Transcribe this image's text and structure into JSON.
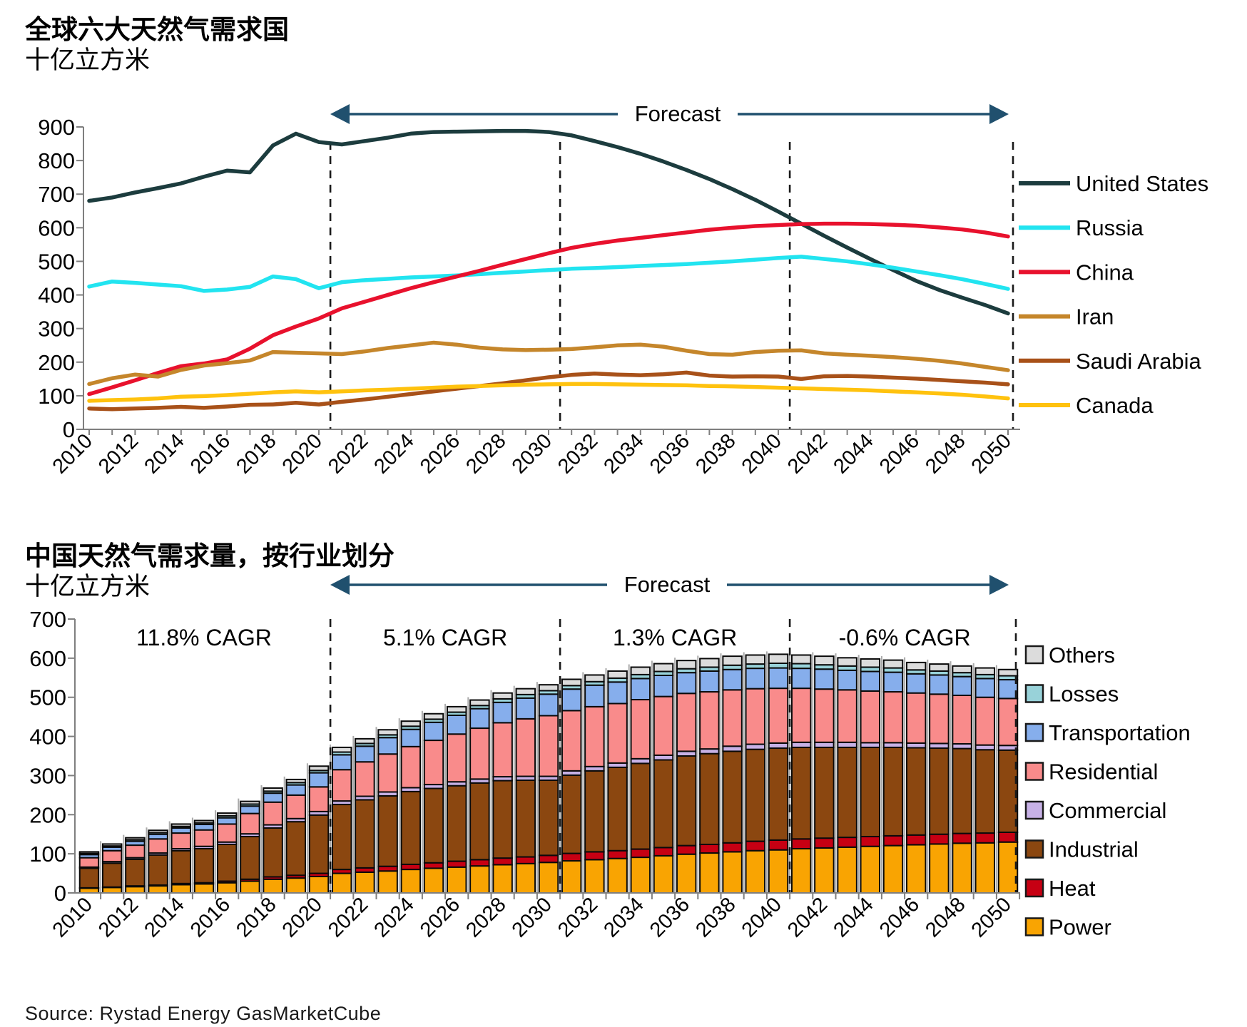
{
  "page_background": "#FFFFFF",
  "source_note": "Source: Rystad Energy GasMarketCube",
  "forecast_label": "Forecast",
  "colors": {
    "forecast_arrow": "#20506E",
    "axis": "#7F7F7F",
    "dashed_line": "#1A1A1A",
    "bar_outline": "#0A0A0A",
    "bar_separator": "#ABABAB",
    "text": "#000000"
  },
  "chart_data": [
    {
      "type": "line",
      "title": "全球六大天然气需求国",
      "subtitle": "十亿立方米",
      "xlabel": "",
      "ylabel": "",
      "ylim": [
        0,
        900
      ],
      "y_ticks": [
        0,
        100,
        200,
        300,
        400,
        500,
        600,
        700,
        800,
        900
      ],
      "x": [
        2010,
        2011,
        2012,
        2013,
        2014,
        2015,
        2016,
        2017,
        2018,
        2019,
        2020,
        2021,
        2022,
        2023,
        2024,
        2025,
        2026,
        2027,
        2028,
        2029,
        2030,
        2031,
        2032,
        2033,
        2034,
        2035,
        2036,
        2037,
        2038,
        2039,
        2040,
        2041,
        2042,
        2043,
        2044,
        2045,
        2046,
        2047,
        2048,
        2049,
        2050
      ],
      "x_tick_step": 2,
      "grid": false,
      "legend_position": "right",
      "forecast_start_year": 2021,
      "dashed_boundaries_after_years": [
        2020,
        2030,
        2040,
        2050
      ],
      "series": [
        {
          "name": "United States",
          "color": "#1C3C3E",
          "values": [
            680,
            690,
            705,
            718,
            732,
            752,
            770,
            765,
            845,
            880,
            855,
            848,
            858,
            868,
            880,
            885,
            886,
            887,
            888,
            888,
            885,
            875,
            858,
            840,
            820,
            797,
            772,
            745,
            715,
            683,
            648,
            612,
            576,
            541,
            507,
            474,
            442,
            415,
            392,
            370,
            345
          ]
        },
        {
          "name": "Russia",
          "color": "#22E4F0",
          "values": [
            425,
            440,
            436,
            431,
            426,
            412,
            416,
            424,
            455,
            447,
            420,
            438,
            444,
            448,
            452,
            455,
            458,
            462,
            466,
            470,
            474,
            478,
            480,
            483,
            486,
            489,
            492,
            496,
            500,
            505,
            510,
            514,
            507,
            500,
            491,
            481,
            470,
            459,
            447,
            433,
            418
          ]
        },
        {
          "name": "China",
          "color": "#E8112D",
          "values": [
            105,
            125,
            146,
            168,
            188,
            196,
            208,
            240,
            280,
            306,
            330,
            360,
            380,
            400,
            420,
            438,
            455,
            472,
            490,
            507,
            524,
            540,
            552,
            562,
            570,
            578,
            586,
            594,
            600,
            605,
            608,
            611,
            612,
            612,
            611,
            609,
            606,
            601,
            595,
            586,
            574
          ]
        },
        {
          "name": "Iran",
          "color": "#C5862B",
          "values": [
            135,
            152,
            163,
            157,
            177,
            190,
            197,
            205,
            230,
            228,
            226,
            224,
            232,
            242,
            250,
            258,
            252,
            243,
            238,
            236,
            237,
            239,
            244,
            250,
            252,
            246,
            234,
            224,
            222,
            230,
            234,
            235,
            226,
            222,
            219,
            215,
            210,
            204,
            196,
            186,
            176
          ]
        },
        {
          "name": "Saudi Arabia",
          "color": "#A85119",
          "values": [
            62,
            60,
            62,
            64,
            67,
            64,
            68,
            73,
            74,
            79,
            74,
            82,
            89,
            97,
            105,
            113,
            121,
            129,
            137,
            146,
            155,
            162,
            166,
            163,
            161,
            164,
            169,
            160,
            157,
            158,
            157,
            150,
            158,
            159,
            157,
            154,
            151,
            147,
            143,
            139,
            134
          ]
        },
        {
          "name": "Canada",
          "color": "#FFC20E",
          "values": [
            85,
            87,
            89,
            92,
            97,
            99,
            102,
            106,
            110,
            113,
            110,
            113,
            116,
            118,
            121,
            124,
            127,
            129,
            131,
            133,
            134,
            135,
            135,
            134,
            133,
            132,
            131,
            129,
            128,
            126,
            124,
            122,
            120,
            118,
            116,
            113,
            110,
            107,
            103,
            98,
            92
          ]
        }
      ]
    },
    {
      "type": "bar",
      "stacked": true,
      "title": "中国天然气需求量，按行业划分",
      "subtitle": "十亿立方米",
      "ylim": [
        0,
        700
      ],
      "y_ticks": [
        0,
        100,
        200,
        300,
        400,
        500,
        600,
        700
      ],
      "categories": [
        2010,
        2011,
        2012,
        2013,
        2014,
        2015,
        2016,
        2017,
        2018,
        2019,
        2020,
        2021,
        2022,
        2023,
        2024,
        2025,
        2026,
        2027,
        2028,
        2029,
        2030,
        2031,
        2032,
        2033,
        2034,
        2035,
        2036,
        2037,
        2038,
        2039,
        2040,
        2041,
        2042,
        2043,
        2044,
        2045,
        2046,
        2047,
        2048,
        2049,
        2050
      ],
      "x_tick_step": 2,
      "dashed_boundaries_after_years": [
        2020,
        2030,
        2040,
        2050
      ],
      "cagr_labels": [
        {
          "text": "11.8% CAGR",
          "span": [
            2010,
            2020
          ]
        },
        {
          "text": "5.1% CAGR",
          "span": [
            2021,
            2030
          ]
        },
        {
          "text": "1.3% CAGR",
          "span": [
            2031,
            2040
          ]
        },
        {
          "text": "-0.6% CAGR",
          "span": [
            2041,
            2050
          ]
        }
      ],
      "legend_order_top_to_bottom": [
        "Others",
        "Losses",
        "Transportation",
        "Residential",
        "Commercial",
        "Industrial",
        "Heat",
        "Power"
      ],
      "series": [
        {
          "name": "Power",
          "color": "#F9A402",
          "values": [
            12,
            14,
            16,
            18,
            21,
            23,
            26,
            30,
            35,
            38,
            42,
            50,
            53,
            56,
            60,
            63,
            66,
            69,
            72,
            75,
            78,
            82,
            85,
            88,
            91,
            95,
            99,
            102,
            105,
            108,
            110,
            113,
            115,
            117,
            119,
            121,
            123,
            125,
            127,
            128,
            130
          ]
        },
        {
          "name": "Heat",
          "color": "#C70013",
          "values": [
            1,
            1,
            2,
            2,
            3,
            3,
            4,
            5,
            6,
            7,
            8,
            10,
            11,
            12,
            13,
            14,
            15,
            16,
            17,
            17,
            18,
            19,
            20,
            20,
            21,
            21,
            22,
            22,
            23,
            24,
            25,
            25,
            25,
            25,
            25,
            25,
            25,
            25,
            25,
            25,
            25
          ]
        },
        {
          "name": "Industrial",
          "color": "#8B4710",
          "values": [
            50,
            61,
            68,
            77,
            84,
            87,
            94,
            109,
            125,
            137,
            149,
            166,
            174,
            180,
            186,
            190,
            193,
            196,
            198,
            196,
            192,
            200,
            207,
            213,
            219,
            224,
            229,
            232,
            234,
            235,
            235,
            234,
            232,
            230,
            228,
            226,
            223,
            220,
            217,
            213,
            210
          ]
        },
        {
          "name": "Commercial",
          "color": "#C7B1E6",
          "values": [
            3,
            4,
            4,
            5,
            5,
            6,
            6,
            7,
            8,
            8,
            9,
            9,
            9,
            10,
            10,
            10,
            10,
            10,
            10,
            10,
            10,
            11,
            11,
            11,
            12,
            12,
            12,
            12,
            13,
            13,
            13,
            13,
            13,
            13,
            12,
            12,
            12,
            12,
            12,
            12,
            12
          ]
        },
        {
          "name": "Residential",
          "color": "#F98B8B",
          "values": [
            24,
            28,
            32,
            36,
            40,
            42,
            46,
            52,
            58,
            60,
            63,
            80,
            88,
            97,
            105,
            113,
            122,
            130,
            138,
            147,
            155,
            154,
            153,
            152,
            151,
            150,
            148,
            146,
            144,
            142,
            140,
            138,
            136,
            134,
            132,
            130,
            128,
            126,
            124,
            122,
            120
          ]
        },
        {
          "name": "Transportation",
          "color": "#86AEEC",
          "values": [
            8,
            9,
            10,
            12,
            13,
            14,
            16,
            19,
            23,
            26,
            36,
            38,
            40,
            42,
            44,
            46,
            48,
            50,
            52,
            53,
            55,
            55,
            55,
            55,
            54,
            54,
            53,
            53,
            52,
            52,
            52,
            51,
            51,
            50,
            50,
            50,
            49,
            49,
            48,
            48,
            48
          ]
        },
        {
          "name": "Losses",
          "color": "#98D2D9",
          "values": [
            3,
            3,
            4,
            4,
            4,
            4,
            5,
            5,
            5,
            6,
            6,
            7,
            7,
            7,
            8,
            8,
            8,
            8,
            9,
            9,
            9,
            9,
            9,
            10,
            10,
            10,
            10,
            10,
            11,
            11,
            12,
            12,
            11,
            11,
            11,
            11,
            10,
            10,
            10,
            10,
            10
          ]
        },
        {
          "name": "Others",
          "color": "#DCDCDC",
          "values": [
            4,
            5,
            5,
            6,
            6,
            6,
            7,
            7,
            8,
            8,
            11,
            12,
            12,
            13,
            13,
            14,
            14,
            14,
            15,
            15,
            15,
            16,
            17,
            18,
            19,
            20,
            21,
            22,
            23,
            23,
            23,
            22,
            22,
            21,
            21,
            20,
            19,
            18,
            17,
            17,
            16
          ]
        }
      ]
    }
  ]
}
